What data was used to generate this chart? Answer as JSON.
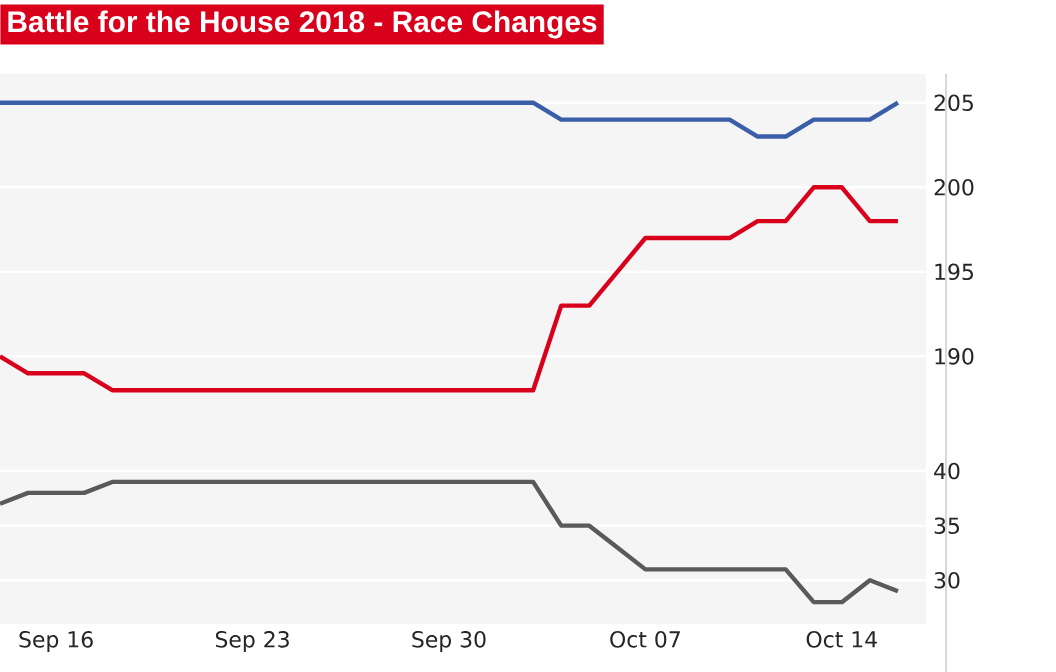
{
  "chart_data": [
    {
      "type": "line",
      "title": "Battle for the House 2018 - Race Changes",
      "x": [
        "2018-09-14",
        "2018-09-15",
        "2018-09-16",
        "2018-09-17",
        "2018-09-18",
        "2018-09-19",
        "2018-09-20",
        "2018-09-21",
        "2018-09-22",
        "2018-09-23",
        "2018-09-24",
        "2018-09-25",
        "2018-09-26",
        "2018-09-27",
        "2018-09-28",
        "2018-09-29",
        "2018-09-30",
        "2018-10-01",
        "2018-10-02",
        "2018-10-03",
        "2018-10-04",
        "2018-10-05",
        "2018-10-06",
        "2018-10-07",
        "2018-10-08",
        "2018-10-09",
        "2018-10-10",
        "2018-10-11",
        "2018-10-12",
        "2018-10-13",
        "2018-10-14",
        "2018-10-15",
        "2018-10-16"
      ],
      "series": [
        {
          "color": "#3a5ea8",
          "values": [
            205,
            205,
            205,
            205,
            205,
            205,
            205,
            205,
            205,
            205,
            205,
            205,
            205,
            205,
            205,
            205,
            205,
            205,
            205,
            205,
            204,
            204,
            204,
            204,
            204,
            204,
            204,
            203,
            203,
            204,
            204,
            204,
            205
          ]
        },
        {
          "color": "#d9001b",
          "values": [
            190,
            189,
            189,
            189,
            188,
            188,
            188,
            188,
            188,
            188,
            188,
            188,
            188,
            188,
            188,
            188,
            188,
            188,
            188,
            188,
            193,
            193,
            195,
            197,
            197,
            197,
            197,
            198,
            198,
            200,
            200,
            198,
            198
          ]
        }
      ],
      "xlim": [
        "2018-09-14",
        "2018-10-17"
      ],
      "ylim": [
        186,
        206.7
      ],
      "yticks": [
        190,
        195,
        200,
        205
      ],
      "xticks": [
        {
          "value": "2018-09-16",
          "label": null
        },
        {
          "value": "2018-09-23",
          "label": null
        },
        {
          "value": "2018-09-30",
          "label": null
        },
        {
          "value": "2018-10-07",
          "label": null
        },
        {
          "value": "2018-10-14",
          "label": null
        }
      ],
      "tick_labels": "y",
      "grid": "y",
      "marker": "none",
      "line_style": "solid"
    },
    {
      "type": "line",
      "x": [
        "2018-09-14",
        "2018-09-15",
        "2018-09-16",
        "2018-09-17",
        "2018-09-18",
        "2018-09-19",
        "2018-09-20",
        "2018-09-21",
        "2018-09-22",
        "2018-09-23",
        "2018-09-24",
        "2018-09-25",
        "2018-09-26",
        "2018-09-27",
        "2018-09-28",
        "2018-09-29",
        "2018-09-30",
        "2018-10-01",
        "2018-10-02",
        "2018-10-03",
        "2018-10-04",
        "2018-10-05",
        "2018-10-06",
        "2018-10-07",
        "2018-10-08",
        "2018-10-09",
        "2018-10-10",
        "2018-10-11",
        "2018-10-12",
        "2018-10-13",
        "2018-10-14",
        "2018-10-15",
        "2018-10-16"
      ],
      "series": [
        {
          "color": "#5a5a5a",
          "values": [
            37,
            38,
            38,
            38,
            39,
            39,
            39,
            39,
            39,
            39,
            39,
            39,
            39,
            39,
            39,
            39,
            39,
            39,
            39,
            39,
            35,
            35,
            33,
            31,
            31,
            31,
            31,
            31,
            31,
            28,
            28,
            30,
            29
          ]
        }
      ],
      "xlim": [
        "2018-09-14",
        "2018-10-17"
      ],
      "ylim": [
        26,
        44.3
      ],
      "yticks": [
        30,
        35,
        40
      ],
      "xticks": [
        {
          "value": "2018-09-16",
          "label": "Sep 16"
        },
        {
          "value": "2018-09-23",
          "label": "Sep 23"
        },
        {
          "value": "2018-09-30",
          "label": "Sep 30"
        },
        {
          "value": "2018-10-07",
          "label": "Oct 07"
        },
        {
          "value": "2018-10-14",
          "label": "Oct 14"
        }
      ],
      "grid": "y",
      "marker": "none",
      "line_style": "solid"
    }
  ]
}
